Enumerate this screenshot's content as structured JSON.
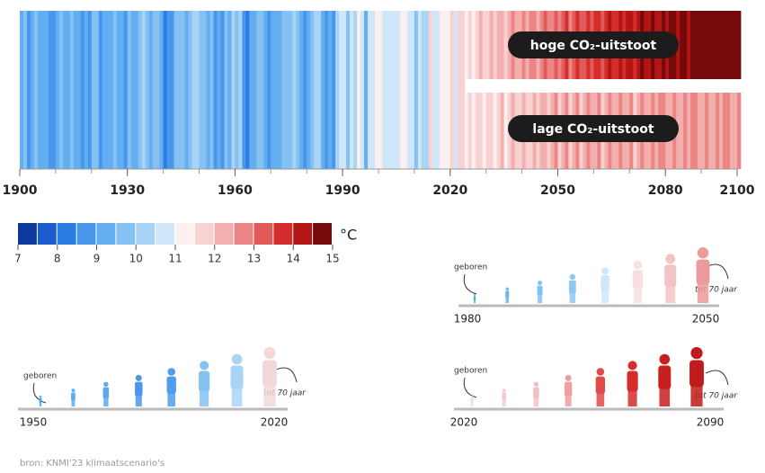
{
  "chart_data": {
    "type": "stripes",
    "xlim": [
      1900,
      2100
    ],
    "xticks": [
      1900,
      1930,
      1960,
      1990,
      2020,
      2050,
      2080,
      2100
    ],
    "series": [
      {
        "x_range": [
          1900,
          2023
        ],
        "values": [
          9.2,
          9.5,
          8.9,
          9.4,
          9.6,
          9.3,
          9.1,
          9.4,
          8.7,
          8.9,
          9.3,
          9.8,
          9.0,
          9.4,
          9.6,
          9.2,
          9.1,
          8.8,
          9.2,
          8.9,
          9.6,
          9.9,
          8.8,
          9.3,
          9.1,
          9.4,
          9.5,
          9.2,
          9.4,
          8.9,
          9.7,
          9.3,
          9.4,
          9.6,
          10.2,
          9.5,
          9.4,
          9.8,
          9.9,
          9.3,
          8.4,
          8.7,
          8.5,
          9.8,
          9.6,
          9.9,
          9.2,
          9.8,
          10.1,
          10.2,
          9.6,
          9.5,
          9.3,
          9.9,
          8.9,
          9.2,
          8.7,
          9.9,
          9.4,
          10.3,
          9.8,
          10.0,
          8.8,
          8.2,
          9.4,
          9.0,
          9.7,
          9.9,
          9.3,
          8.9,
          9.2,
          9.4,
          9.1,
          9.6,
          9.8,
          9.9,
          10.0,
          9.8,
          9.3,
          8.8,
          9.1,
          9.6,
          10.0,
          10.1,
          9.3,
          8.6,
          9.0,
          8.8,
          10.4,
          10.9,
          10.9,
          9.7,
          10.7,
          10.1,
          11.1,
          10.8,
          9.1,
          10.5,
          10.7,
          11.1,
          11.0,
          10.6,
          10.8,
          10.6,
          10.7,
          10.8,
          11.2,
          11.4,
          10.9,
          10.8,
          9.5,
          10.9,
          10.4,
          10.1,
          11.7,
          10.9,
          10.8,
          11.1,
          11.3,
          11.2,
          11.7,
          10.7,
          11.6,
          11.8
        ]
      },
      {
        "name": "hoge CO₂-uitstoot",
        "x_range": [
          2024,
          2100
        ],
        "values": [
          11.4,
          11.9,
          11.2,
          11.7,
          12.0,
          11.5,
          11.8,
          12.2,
          11.6,
          12.0,
          12.4,
          11.8,
          12.1,
          12.6,
          12.0,
          12.3,
          12.8,
          12.2,
          12.5,
          12.9,
          12.4,
          12.7,
          13.1,
          12.6,
          12.9,
          13.3,
          12.8,
          13.1,
          13.5,
          12.9,
          13.2,
          13.6,
          13.0,
          13.4,
          13.8,
          13.2,
          13.5,
          13.9,
          13.3,
          13.7,
          14.1,
          13.5,
          13.8,
          14.2,
          13.7,
          14.0,
          14.4,
          13.9,
          14.2,
          14.6,
          14.0,
          14.3,
          14.7,
          14.1,
          14.4,
          14.8,
          14.2,
          14.5,
          14.9,
          14.3,
          14.6,
          15.0,
          14.4,
          14.7,
          15.1,
          14.5,
          14.8,
          15.2,
          14.6,
          14.9,
          15.3,
          14.7,
          15.0,
          15.4,
          14.8,
          15.1,
          15.5
        ]
      },
      {
        "name": "lage CO₂-uitstoot",
        "x_range": [
          2024,
          2100
        ],
        "values": [
          11.2,
          11.7,
          11.0,
          11.5,
          11.8,
          11.3,
          11.6,
          11.9,
          11.2,
          11.7,
          12.0,
          11.4,
          11.8,
          12.1,
          11.5,
          11.9,
          12.2,
          11.6,
          11.9,
          12.3,
          11.7,
          12.0,
          12.4,
          11.8,
          12.1,
          12.5,
          11.9,
          12.2,
          12.6,
          11.8,
          12.1,
          12.5,
          11.9,
          12.3,
          12.6,
          12.0,
          12.3,
          12.7,
          11.9,
          12.2,
          12.6,
          12.0,
          12.3,
          12.7,
          12.1,
          12.4,
          12.8,
          11.9,
          12.3,
          12.6,
          12.0,
          12.4,
          12.7,
          12.1,
          12.5,
          12.8,
          12.2,
          12.4,
          12.7,
          12.0,
          12.3,
          12.6,
          12.1,
          12.5,
          12.8,
          12.2,
          12.4,
          12.7,
          12.1,
          12.4,
          12.7,
          12.2,
          12.5,
          12.8,
          12.1,
          12.4,
          12.6
        ]
      }
    ],
    "colorbar": {
      "unit": "°C",
      "ticks": [
        7,
        8,
        9,
        10,
        11,
        12,
        13,
        14,
        15
      ],
      "colors": [
        "#0b3a9c",
        "#1d5ccc",
        "#2b7de3",
        "#4897ec",
        "#63aef1",
        "#86c1f3",
        "#a9d4f6",
        "#d0e7f9",
        "#fbefef",
        "#f8d2d2",
        "#f3aeae",
        "#ec8585",
        "#e25a5a",
        "#d52c2c",
        "#b31515",
        "#760a0a"
      ]
    },
    "panels": [
      {
        "start": "1980",
        "end": "2050",
        "born": "geboren",
        "until": "tot 70 jaar"
      },
      {
        "start": "1950",
        "end": "2020",
        "born": "geboren",
        "until": "tot 70 jaar"
      },
      {
        "start": "2020",
        "end": "2090",
        "born": "geboren",
        "until": "tot 70 jaar"
      }
    ],
    "source": "bron: KNMI'23 klimaatscenario's"
  }
}
